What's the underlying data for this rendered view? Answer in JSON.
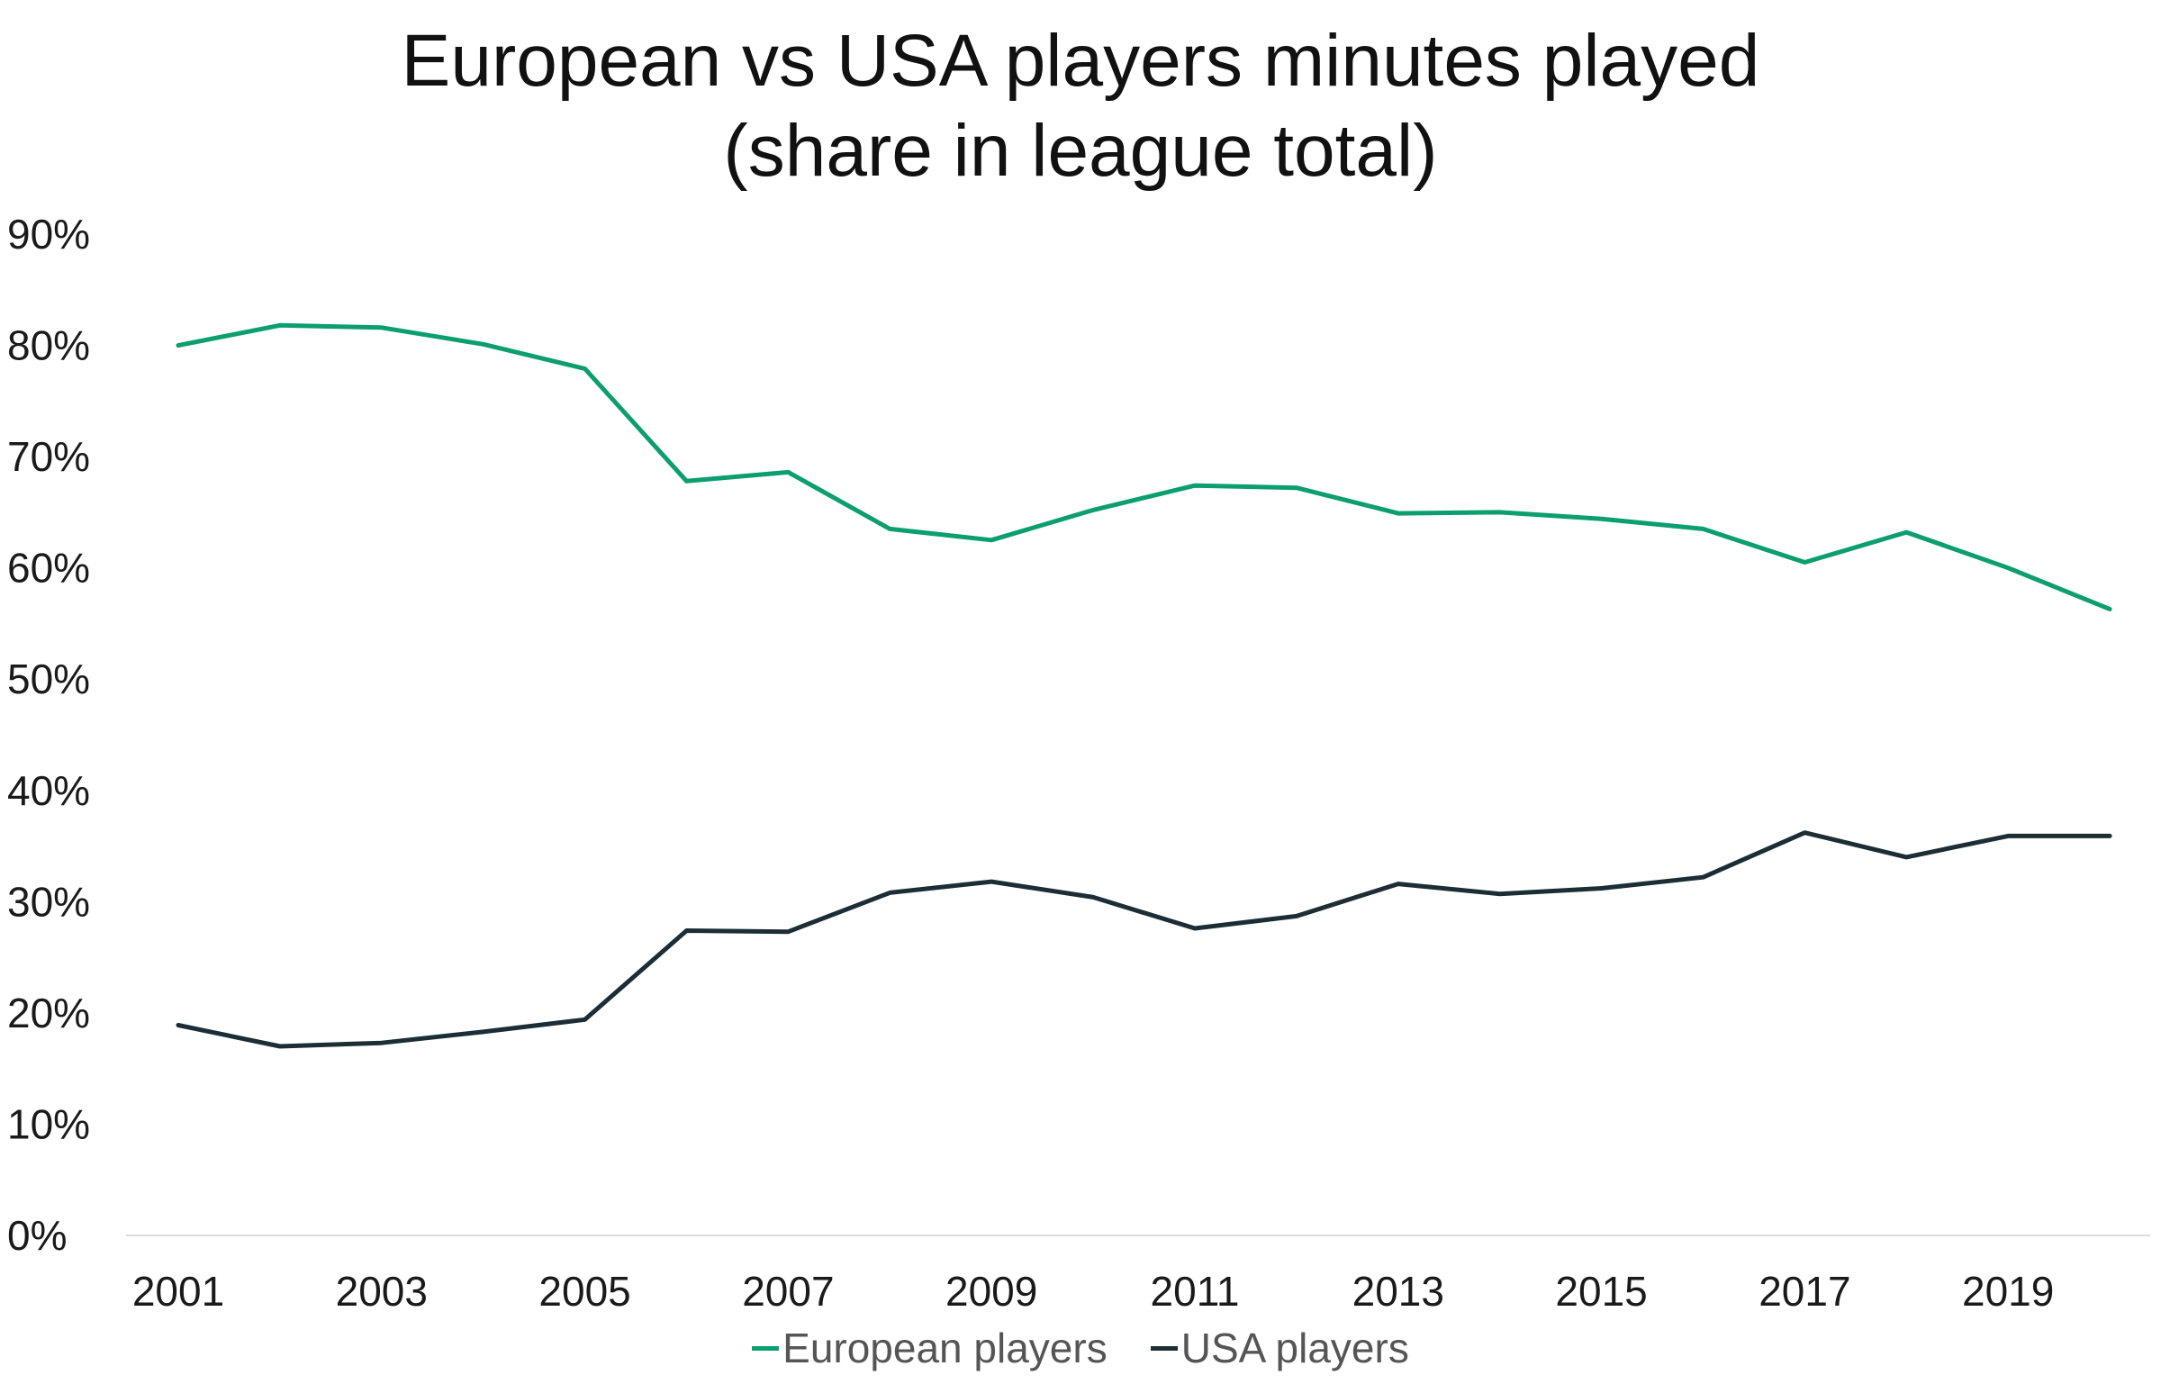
{
  "chart_data": {
    "type": "line",
    "title": [
      "European vs USA players minutes played",
      "(share in league total)"
    ],
    "x": [
      2001,
      2002,
      2003,
      2004,
      2005,
      2006,
      2007,
      2008,
      2009,
      2010,
      2011,
      2012,
      2013,
      2014,
      2015,
      2016,
      2017,
      2018,
      2019,
      2020
    ],
    "x_tick_labels": [
      "2001",
      "2003",
      "2005",
      "2007",
      "2009",
      "2011",
      "2013",
      "2015",
      "2017",
      "2019"
    ],
    "y_tick_labels": [
      "0%",
      "10%",
      "20%",
      "30%",
      "40%",
      "50%",
      "60%",
      "70%",
      "80%",
      "90%"
    ],
    "ylim": [
      0,
      90
    ],
    "y_unit": "%",
    "grid": false,
    "legend_position": "bottom",
    "series": [
      {
        "name": "European players",
        "color": "#0b9e6e",
        "values": [
          80.0,
          81.8,
          81.6,
          80.1,
          77.9,
          67.8,
          68.6,
          63.5,
          62.5,
          65.2,
          67.4,
          67.2,
          64.9,
          65.0,
          64.4,
          63.5,
          60.5,
          63.2,
          60.0,
          56.3
        ]
      },
      {
        "name": "USA players",
        "color": "#1b2e36",
        "values": [
          18.9,
          17.0,
          17.3,
          18.3,
          19.4,
          27.4,
          27.3,
          30.8,
          31.8,
          30.4,
          27.6,
          28.7,
          31.6,
          30.7,
          31.2,
          32.2,
          36.2,
          34.0,
          35.9,
          35.9
        ]
      }
    ]
  }
}
